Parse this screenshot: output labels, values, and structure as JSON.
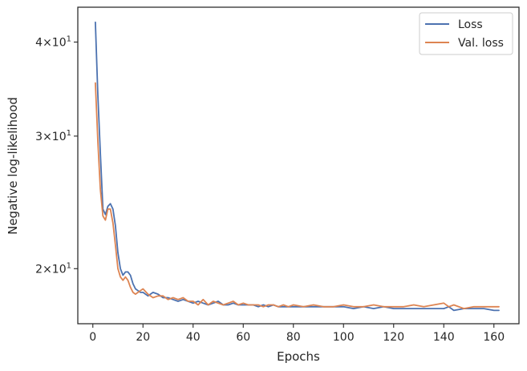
{
  "chart_data": {
    "type": "line",
    "xlabel": "Epochs",
    "ylabel": "Negative log-likelihood",
    "yscale": "log",
    "xlim": [
      -6,
      170
    ],
    "ylim": [
      16.9,
      44.5
    ],
    "x_ticks": [
      0,
      20,
      40,
      60,
      80,
      100,
      120,
      140,
      160
    ],
    "y_ticks": [
      {
        "value": 40,
        "mantissa": "4",
        "times": "×",
        "base": "10",
        "exp": "1"
      },
      {
        "value": 30,
        "mantissa": "3",
        "times": "×",
        "base": "10",
        "exp": "1"
      },
      {
        "value": 20,
        "mantissa": "2",
        "times": "×",
        "base": "10",
        "exp": "1"
      }
    ],
    "grid": false,
    "legend_position": "top-right",
    "series": [
      {
        "name": "Loss",
        "color": "#4c72b0",
        "points": [
          [
            1,
            42.5
          ],
          [
            2,
            34.0
          ],
          [
            3,
            28.5
          ],
          [
            4,
            24.0
          ],
          [
            5,
            23.6
          ],
          [
            6,
            24.2
          ],
          [
            7,
            24.4
          ],
          [
            8,
            24.0
          ],
          [
            9,
            22.8
          ],
          [
            10,
            21.0
          ],
          [
            11,
            20.0
          ],
          [
            12,
            19.6
          ],
          [
            13,
            19.8
          ],
          [
            14,
            19.8
          ],
          [
            15,
            19.6
          ],
          [
            16,
            19.1
          ],
          [
            17,
            18.8
          ],
          [
            18,
            18.7
          ],
          [
            19,
            18.6
          ],
          [
            20,
            18.6
          ],
          [
            22,
            18.4
          ],
          [
            24,
            18.6
          ],
          [
            26,
            18.5
          ],
          [
            28,
            18.3
          ],
          [
            30,
            18.3
          ],
          [
            32,
            18.2
          ],
          [
            34,
            18.1
          ],
          [
            36,
            18.2
          ],
          [
            38,
            18.1
          ],
          [
            40,
            18.0
          ],
          [
            42,
            18.1
          ],
          [
            44,
            18.0
          ],
          [
            46,
            17.9
          ],
          [
            48,
            18.0
          ],
          [
            50,
            18.1
          ],
          [
            52,
            17.9
          ],
          [
            54,
            17.9
          ],
          [
            56,
            18.0
          ],
          [
            58,
            17.9
          ],
          [
            60,
            17.9
          ],
          [
            62,
            17.9
          ],
          [
            64,
            17.9
          ],
          [
            66,
            17.8
          ],
          [
            68,
            17.9
          ],
          [
            70,
            17.8
          ],
          [
            72,
            17.9
          ],
          [
            74,
            17.8
          ],
          [
            76,
            17.8
          ],
          [
            78,
            17.8
          ],
          [
            80,
            17.8
          ],
          [
            84,
            17.8
          ],
          [
            88,
            17.8
          ],
          [
            92,
            17.8
          ],
          [
            96,
            17.8
          ],
          [
            100,
            17.8
          ],
          [
            104,
            17.7
          ],
          [
            108,
            17.8
          ],
          [
            112,
            17.7
          ],
          [
            116,
            17.8
          ],
          [
            120,
            17.7
          ],
          [
            124,
            17.7
          ],
          [
            128,
            17.7
          ],
          [
            132,
            17.7
          ],
          [
            136,
            17.7
          ],
          [
            140,
            17.7
          ],
          [
            142,
            17.8
          ],
          [
            144,
            17.6
          ],
          [
            148,
            17.7
          ],
          [
            152,
            17.7
          ],
          [
            156,
            17.7
          ],
          [
            160,
            17.6
          ],
          [
            162,
            17.6
          ]
        ]
      },
      {
        "name": "Val. loss",
        "color": "#dd8452",
        "points": [
          [
            1,
            35.3
          ],
          [
            2,
            29.5
          ],
          [
            3,
            25.5
          ],
          [
            4,
            23.5
          ],
          [
            5,
            23.2
          ],
          [
            6,
            24.0
          ],
          [
            7,
            24.0
          ],
          [
            8,
            23.0
          ],
          [
            9,
            21.5
          ],
          [
            10,
            20.0
          ],
          [
            11,
            19.5
          ],
          [
            12,
            19.3
          ],
          [
            13,
            19.5
          ],
          [
            14,
            19.3
          ],
          [
            15,
            18.9
          ],
          [
            16,
            18.6
          ],
          [
            17,
            18.5
          ],
          [
            18,
            18.6
          ],
          [
            19,
            18.7
          ],
          [
            20,
            18.8
          ],
          [
            22,
            18.5
          ],
          [
            24,
            18.3
          ],
          [
            26,
            18.4
          ],
          [
            28,
            18.4
          ],
          [
            30,
            18.2
          ],
          [
            32,
            18.3
          ],
          [
            34,
            18.2
          ],
          [
            36,
            18.3
          ],
          [
            38,
            18.1
          ],
          [
            40,
            18.1
          ],
          [
            42,
            17.9
          ],
          [
            44,
            18.2
          ],
          [
            46,
            17.9
          ],
          [
            48,
            18.1
          ],
          [
            50,
            18.0
          ],
          [
            52,
            17.9
          ],
          [
            54,
            18.0
          ],
          [
            56,
            18.1
          ],
          [
            58,
            17.9
          ],
          [
            60,
            18.0
          ],
          [
            62,
            17.9
          ],
          [
            64,
            17.9
          ],
          [
            66,
            17.9
          ],
          [
            68,
            17.8
          ],
          [
            70,
            17.9
          ],
          [
            72,
            17.9
          ],
          [
            74,
            17.8
          ],
          [
            76,
            17.9
          ],
          [
            78,
            17.8
          ],
          [
            80,
            17.9
          ],
          [
            84,
            17.8
          ],
          [
            88,
            17.9
          ],
          [
            92,
            17.8
          ],
          [
            96,
            17.8
          ],
          [
            100,
            17.9
          ],
          [
            104,
            17.8
          ],
          [
            108,
            17.8
          ],
          [
            112,
            17.9
          ],
          [
            116,
            17.8
          ],
          [
            120,
            17.8
          ],
          [
            124,
            17.8
          ],
          [
            128,
            17.9
          ],
          [
            132,
            17.8
          ],
          [
            136,
            17.9
          ],
          [
            140,
            18.0
          ],
          [
            142,
            17.8
          ],
          [
            144,
            17.9
          ],
          [
            148,
            17.7
          ],
          [
            152,
            17.8
          ],
          [
            156,
            17.8
          ],
          [
            160,
            17.8
          ],
          [
            162,
            17.8
          ]
        ]
      }
    ]
  }
}
